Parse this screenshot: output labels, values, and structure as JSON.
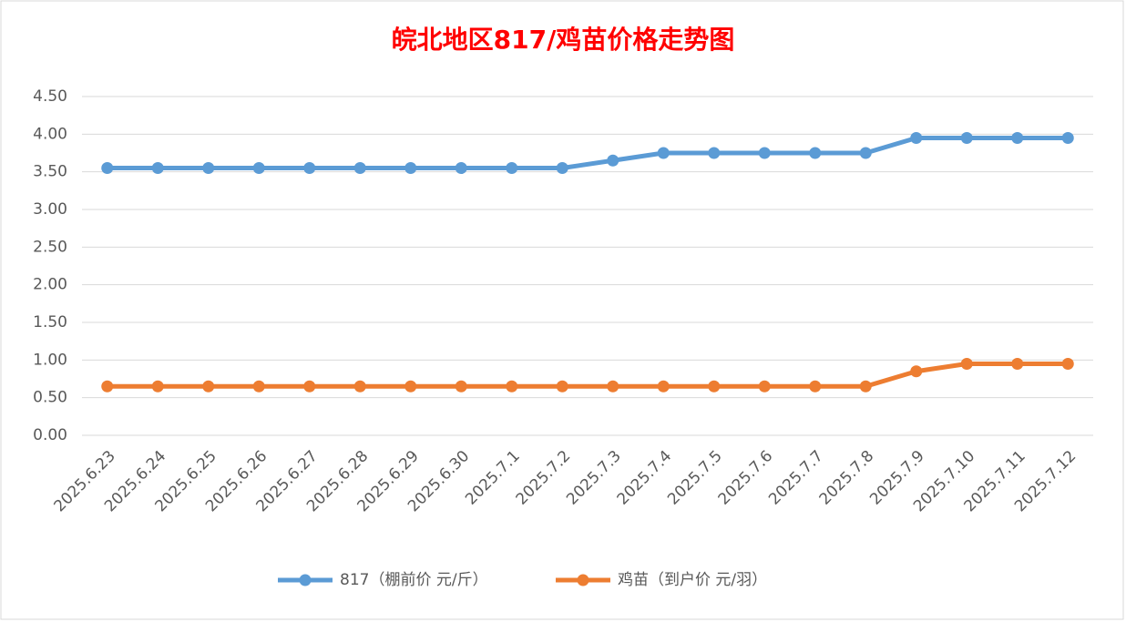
{
  "chart_data": {
    "type": "line",
    "title": "皖北地区817/鸡苗价格走势图",
    "categories": [
      "2025.6.23",
      "2025.6.24",
      "2025.6.25",
      "2025.6.26",
      "2025.6.27",
      "2025.6.28",
      "2025.6.29",
      "2025.6.30",
      "2025.7.1",
      "2025.7.2",
      "2025.7.3",
      "2025.7.4",
      "2025.7.5",
      "2025.7.6",
      "2025.7.7",
      "2025.7.8",
      "2025.7.9",
      "2025.7.10",
      "2025.7.11",
      "2025.7.12"
    ],
    "series": [
      {
        "name": "817（棚前价 元/斤）",
        "color": "#5b9bd5",
        "values": [
          3.55,
          3.55,
          3.55,
          3.55,
          3.55,
          3.55,
          3.55,
          3.55,
          3.55,
          3.55,
          3.65,
          3.75,
          3.75,
          3.75,
          3.75,
          3.75,
          3.95,
          3.95,
          3.95,
          3.95
        ]
      },
      {
        "name": "鸡苗（到户价 元/羽）",
        "color": "#ed7d31",
        "values": [
          0.65,
          0.65,
          0.65,
          0.65,
          0.65,
          0.65,
          0.65,
          0.65,
          0.65,
          0.65,
          0.65,
          0.65,
          0.65,
          0.65,
          0.65,
          0.65,
          0.85,
          0.95,
          0.95,
          0.95
        ]
      }
    ],
    "ylim": [
      0,
      4.5
    ],
    "yticks": [
      {
        "value": 0,
        "label": "0.00"
      },
      {
        "value": 0.5,
        "label": "0.50"
      },
      {
        "value": 1,
        "label": "1.00"
      },
      {
        "value": 1.5,
        "label": "1.50"
      },
      {
        "value": 2,
        "label": "2.00"
      },
      {
        "value": 2.5,
        "label": "2.50"
      },
      {
        "value": 3,
        "label": "3.00"
      },
      {
        "value": 3.5,
        "label": "3.50"
      },
      {
        "value": 4,
        "label": "4.00"
      },
      {
        "value": 4.5,
        "label": "4.50"
      }
    ],
    "grid": true,
    "legend": "bottom"
  }
}
